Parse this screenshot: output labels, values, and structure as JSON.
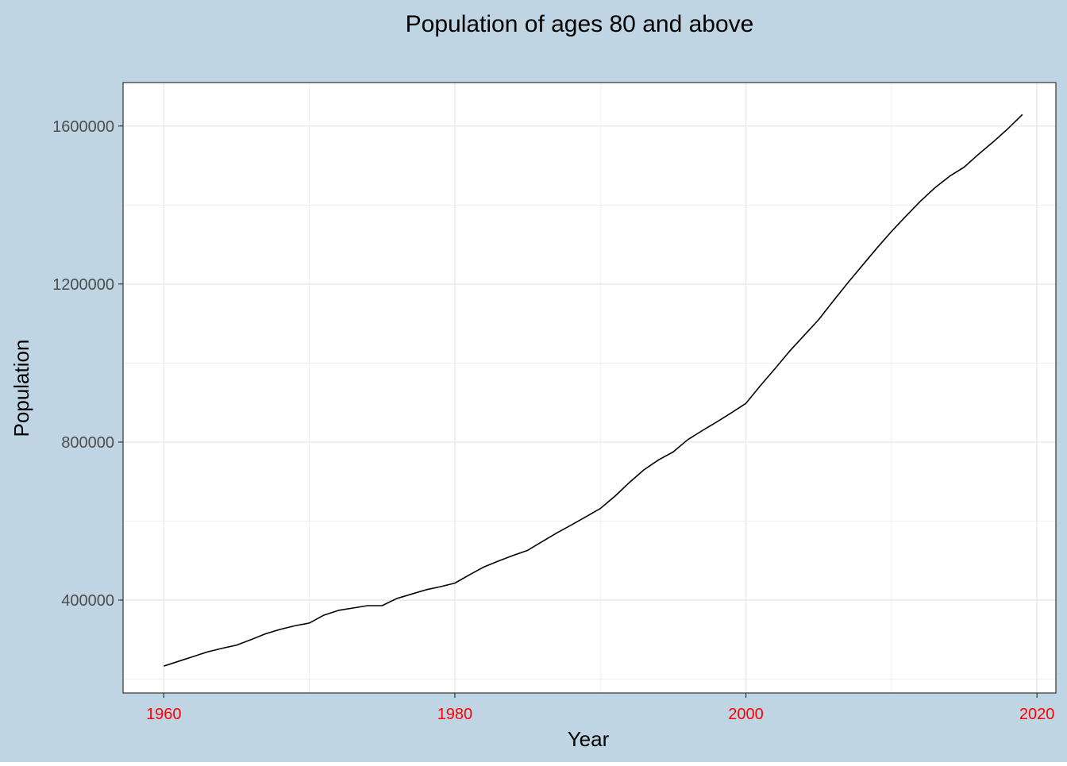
{
  "chart_data": {
    "type": "line",
    "title": "Population of ages 80 and above",
    "xlabel": "Year",
    "ylabel": "Population",
    "xlim": [
      1957.2,
      2021.3
    ],
    "ylim": [
      165000,
      1710000
    ],
    "x_ticks": [
      1960,
      1980,
      2000,
      2020
    ],
    "x_tick_labels": [
      "1960",
      "1980",
      "2000",
      "2020"
    ],
    "y_ticks": [
      400000,
      800000,
      1200000,
      1600000
    ],
    "y_tick_labels": [
      "400000",
      "800000",
      "1200000",
      "1600000"
    ],
    "grid": true,
    "legend": "none",
    "colors": {
      "background": "#bfd5e3",
      "panel": "#ffffff",
      "grid": "#ebebeb",
      "line": "#000000",
      "x_tick_labels": "#ff0000",
      "y_tick_labels": "#4d4d4d"
    },
    "series": [
      {
        "x": [
          1960,
          1961,
          1962,
          1963,
          1964,
          1965,
          1966,
          1967,
          1968,
          1969,
          1970,
          1971,
          1972,
          1973,
          1974,
          1975,
          1976,
          1977,
          1978,
          1979,
          1980,
          1981,
          1982,
          1983,
          1984,
          1985,
          1986,
          1987,
          1988,
          1989,
          1990,
          1991,
          1992,
          1993,
          1994,
          1995,
          1996,
          1997,
          1998,
          1999,
          2000,
          2001,
          2002,
          2003,
          2004,
          2005,
          2006,
          2007,
          2008,
          2009,
          2010,
          2011,
          2012,
          2013,
          2014,
          2015,
          2016,
          2017,
          2018,
          2019
        ],
        "y": [
          233000,
          245000,
          257000,
          269000,
          278000,
          286000,
          300000,
          315000,
          326000,
          335000,
          342000,
          362000,
          374000,
          380000,
          386000,
          386000,
          404000,
          415000,
          426000,
          434000,
          443000,
          464000,
          484000,
          499000,
          513000,
          526000,
          548000,
          570000,
          590000,
          611000,
          632000,
          663000,
          698000,
          730000,
          755000,
          775000,
          806000,
          829000,
          851000,
          874000,
          898000,
          943000,
          986000,
          1030000,
          1070000,
          1110000,
          1157000,
          1203000,
          1247000,
          1291000,
          1333000,
          1372000,
          1410000,
          1444000,
          1473000,
          1496000,
          1529000,
          1560000,
          1593000,
          1629000
        ]
      }
    ]
  }
}
